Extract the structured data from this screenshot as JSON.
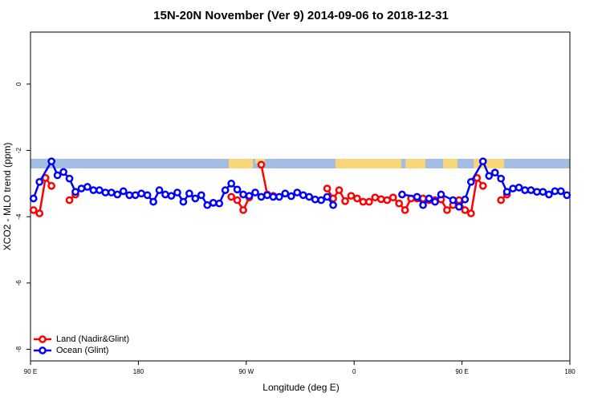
{
  "chart_data": {
    "type": "line",
    "title": "15N-20N November (Ver 9)   2014-09-06 to 2018-12-31",
    "xlabel": "Longitude (deg E)",
    "ylabel": "XCO2 - MLO trend (ppm)",
    "xlim": [
      90,
      540
    ],
    "ylim": [
      -8.35,
      1.57
    ],
    "xticks": [
      {
        "value": 90,
        "label": "90 E"
      },
      180,
      {
        "value": 270,
        "label": "90 W"
      },
      {
        "value": 360,
        "label": "0"
      },
      {
        "value": 450,
        "label": "90 E"
      },
      {
        "value": 540,
        "label": "180"
      }
    ],
    "yticks": [
      -8,
      -6,
      -4,
      -2,
      0
    ],
    "legend": "bottom-left",
    "series": [
      {
        "name": "Land (Nadir&Glint)",
        "color": "#ff0000",
        "x": [
          92.5,
          97.5,
          102.5,
          107.5,
          112.5,
          122.5,
          127.5,
          132.5,
          257.5,
          262.5,
          267.5,
          272.5,
          277.5,
          282.5,
          287.5,
          292.5,
          297.5,
          337.5,
          342.5,
          347.5,
          352.5,
          357.5,
          362.5,
          367.5,
          372.5,
          377.5,
          382.5,
          387.5,
          392.5,
          397.5,
          402.5,
          407.5,
          412.5,
          417.5,
          422.5,
          427.5,
          432.5,
          437.5,
          442.5,
          447.5,
          452.5,
          457.5,
          462.5,
          467.5,
          472.5,
          482.5,
          487.5
        ],
        "values": [
          -3.8,
          -3.9,
          -2.83,
          -3.07,
          null,
          -3.5,
          -3.33,
          null,
          -3.4,
          -3.5,
          -3.8,
          -3.42,
          null,
          -2.43,
          -3.33,
          -3.37,
          null,
          -3.15,
          -3.45,
          -3.2,
          -3.53,
          -3.37,
          -3.45,
          -3.55,
          -3.55,
          -3.42,
          -3.47,
          -3.5,
          -3.42,
          -3.6,
          -3.8,
          -3.45,
          -3.45,
          -3.45,
          -3.5,
          -3.5,
          -3.48,
          -3.8,
          -3.65,
          -3.5,
          -3.8,
          -3.9,
          -2.83,
          -3.07,
          null,
          -3.5,
          -3.33
        ]
      },
      {
        "name": "Ocean (Glint)",
        "color": "#0000ff",
        "x": [
          92.5,
          97.5,
          107.5,
          112.5,
          117.5,
          122.5,
          127.5,
          132.5,
          137.5,
          142.5,
          147.5,
          152.5,
          157.5,
          162.5,
          167.5,
          172.5,
          177.5,
          182.5,
          187.5,
          192.5,
          197.5,
          202.5,
          207.5,
          212.5,
          217.5,
          222.5,
          227.5,
          232.5,
          237.5,
          242.5,
          247.5,
          252.5,
          257.5,
          262.5,
          267.5,
          272.5,
          277.5,
          282.5,
          287.5,
          292.5,
          297.5,
          302.5,
          307.5,
          312.5,
          317.5,
          322.5,
          327.5,
          332.5,
          337.5,
          342.5,
          347.5,
          400,
          412.5,
          417.5,
          422.5,
          427.5,
          432.5,
          442.5,
          447.5,
          452.5,
          457.5,
          467.5,
          472.5,
          477.5,
          482.5,
          487.5,
          492.5,
          497.5,
          502.5,
          507.5,
          512.5,
          517.5,
          522.5,
          527.5,
          532.5,
          537.5
        ],
        "values": [
          -3.45,
          -2.95,
          -2.33,
          -2.75,
          -2.65,
          -2.85,
          -3.25,
          -3.15,
          -3.1,
          -3.2,
          -3.2,
          -3.27,
          -3.27,
          -3.33,
          -3.23,
          -3.35,
          -3.35,
          -3.3,
          -3.35,
          -3.55,
          -3.2,
          -3.33,
          -3.37,
          -3.27,
          -3.55,
          -3.3,
          -3.45,
          -3.35,
          -3.65,
          -3.58,
          -3.6,
          -3.2,
          -3.0,
          -3.18,
          -3.33,
          -3.37,
          -3.27,
          -3.4,
          -3.35,
          -3.4,
          -3.4,
          -3.3,
          -3.38,
          -3.27,
          -3.35,
          -3.4,
          -3.48,
          -3.5,
          -3.4,
          -3.65,
          null,
          -3.33,
          -3.4,
          -3.65,
          -3.45,
          -3.55,
          -3.33,
          -3.5,
          -3.7,
          -3.48,
          -2.95,
          -2.33,
          -2.77,
          -2.67,
          -2.85,
          -3.25,
          -3.15,
          -3.12,
          -3.2,
          -3.2,
          -3.25,
          -3.25,
          -3.33,
          -3.23,
          -3.23,
          -3.35
        ]
      }
    ]
  }
}
